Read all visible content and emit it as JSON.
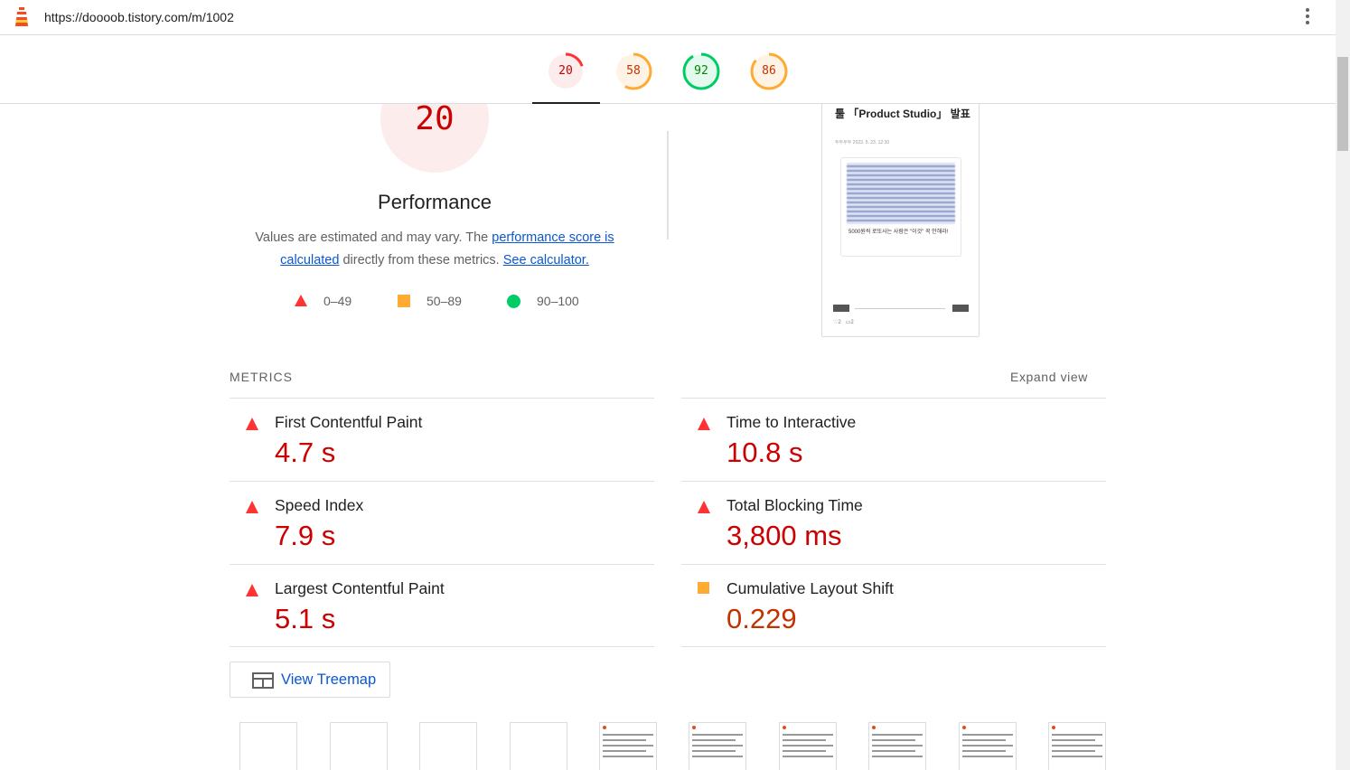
{
  "browser": {
    "url": "https://doooob.tistory.com/m/1002"
  },
  "gauges": [
    {
      "score": "20",
      "color": "#ff3333",
      "bg": "#fdecec",
      "text_color": "#c00000",
      "fraction": 0.2
    },
    {
      "score": "58",
      "color": "#ffaa33",
      "bg": "#fff3e5",
      "text_color": "#c33300",
      "fraction": 0.58
    },
    {
      "score": "92",
      "color": "#00cc66",
      "bg": "#e5faef",
      "text_color": "#008800",
      "fraction": 0.92
    },
    {
      "score": "86",
      "color": "#ffaa33",
      "bg": "#fff3e5",
      "text_color": "#c33300",
      "fraction": 0.86
    }
  ],
  "performance": {
    "score": "20",
    "title": "Performance",
    "desc_prefix": "Values are estimated and may vary. The ",
    "desc_link1": "performance score is calculated",
    "desc_middle": " directly from these metrics. ",
    "desc_link2": "See calculator."
  },
  "legend": [
    {
      "shape": "triangle",
      "label": "0–49",
      "color": "#ff3333"
    },
    {
      "shape": "square",
      "label": "50–89",
      "color": "#ffaa33"
    },
    {
      "shape": "circle",
      "label": "90–100",
      "color": "#00cc66"
    }
  ],
  "screenshot": {
    "title": "툴 「Product Studio」 발표",
    "meta": "두두두두   2023. 5. 23. 12:30",
    "caption": "5000원씩 로또사는 사람은 \"이것\" 꼭 안해라!",
    "likes": "♡2",
    "comments": "▭2"
  },
  "metrics": {
    "title": "METRICS",
    "expand_label": "Expand view",
    "items": [
      {
        "name": "First Contentful Paint",
        "value": "4.7 s",
        "rating": "fail"
      },
      {
        "name": "Time to Interactive",
        "value": "10.8 s",
        "rating": "fail"
      },
      {
        "name": "Speed Index",
        "value": "7.9 s",
        "rating": "fail"
      },
      {
        "name": "Total Blocking Time",
        "value": "3,800 ms",
        "rating": "fail"
      },
      {
        "name": "Largest Contentful Paint",
        "value": "5.1 s",
        "rating": "fail"
      },
      {
        "name": "Cumulative Layout Shift",
        "value": "0.229",
        "rating": "average"
      }
    ]
  },
  "treemap": {
    "label": "View Treemap"
  },
  "icons": {
    "lighthouse": "lighthouse-icon",
    "menu": "more-vert-icon",
    "treemap": "treemap-icon"
  }
}
